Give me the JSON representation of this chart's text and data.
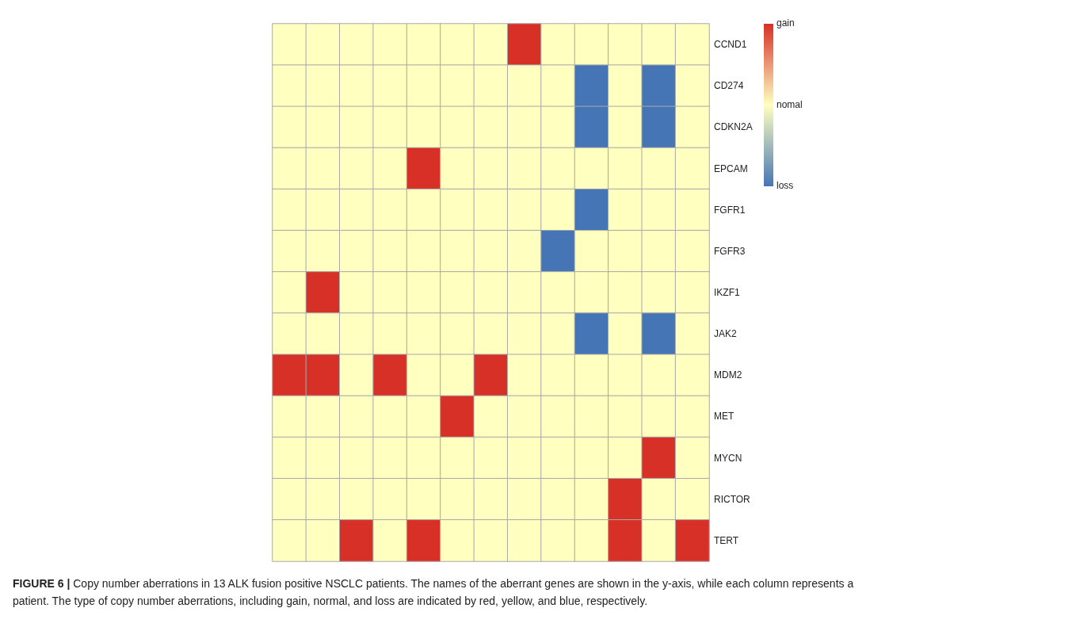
{
  "chart_data": {
    "type": "heatmap",
    "categories": [
      null,
      null,
      null,
      null,
      null,
      null,
      null,
      null,
      null,
      null,
      null,
      null,
      null
    ],
    "y_categories": [
      "CCND1",
      "CD274",
      "CDKN2A",
      "EPCAM",
      "FGFR1",
      "FGFR3",
      "IKZF1",
      "JAK2",
      "MDM2",
      "MET",
      "MYCN",
      "RICTOR",
      "TERT"
    ],
    "cells": [
      [
        0,
        0,
        0,
        0,
        0,
        0,
        0,
        1,
        0,
        0,
        0,
        0,
        0
      ],
      [
        0,
        0,
        0,
        0,
        0,
        0,
        0,
        0,
        0,
        -1,
        0,
        -1,
        0
      ],
      [
        0,
        0,
        0,
        0,
        0,
        0,
        0,
        0,
        0,
        -1,
        0,
        -1,
        0
      ],
      [
        0,
        0,
        0,
        0,
        1,
        0,
        0,
        0,
        0,
        0,
        0,
        0,
        0
      ],
      [
        0,
        0,
        0,
        0,
        0,
        0,
        0,
        0,
        0,
        -1,
        0,
        0,
        0
      ],
      [
        0,
        0,
        0,
        0,
        0,
        0,
        0,
        0,
        -1,
        0,
        0,
        0,
        0
      ],
      [
        0,
        1,
        0,
        0,
        0,
        0,
        0,
        0,
        0,
        0,
        0,
        0,
        0
      ],
      [
        0,
        0,
        0,
        0,
        0,
        0,
        0,
        0,
        0,
        -1,
        0,
        -1,
        0
      ],
      [
        1,
        1,
        0,
        1,
        0,
        0,
        1,
        0,
        0,
        0,
        0,
        0,
        0
      ],
      [
        0,
        0,
        0,
        0,
        0,
        1,
        0,
        0,
        0,
        0,
        0,
        0,
        0
      ],
      [
        0,
        0,
        0,
        0,
        0,
        0,
        0,
        0,
        0,
        0,
        0,
        1,
        0
      ],
      [
        0,
        0,
        0,
        0,
        0,
        0,
        0,
        0,
        0,
        0,
        1,
        0,
        0
      ],
      [
        0,
        0,
        1,
        0,
        1,
        0,
        0,
        0,
        0,
        0,
        1,
        0,
        1
      ]
    ],
    "clim": [
      -1,
      1
    ],
    "cticks": [
      {
        "value": 1,
        "label": "gain"
      },
      {
        "value": 0,
        "label": "nomal"
      },
      {
        "value": -1,
        "label": "loss"
      }
    ],
    "annotations": [
      "FIGURE 6 | Copy number aberrations in 13 ALK fusion positive NSCLC patients. The names of the aberrant genes are shown in the y-axis, while each column represents a patient. The type of copy number aberrations, including gain, normal, and loss are indicated by red, yellow, and blue, respectively."
    ]
  }
}
